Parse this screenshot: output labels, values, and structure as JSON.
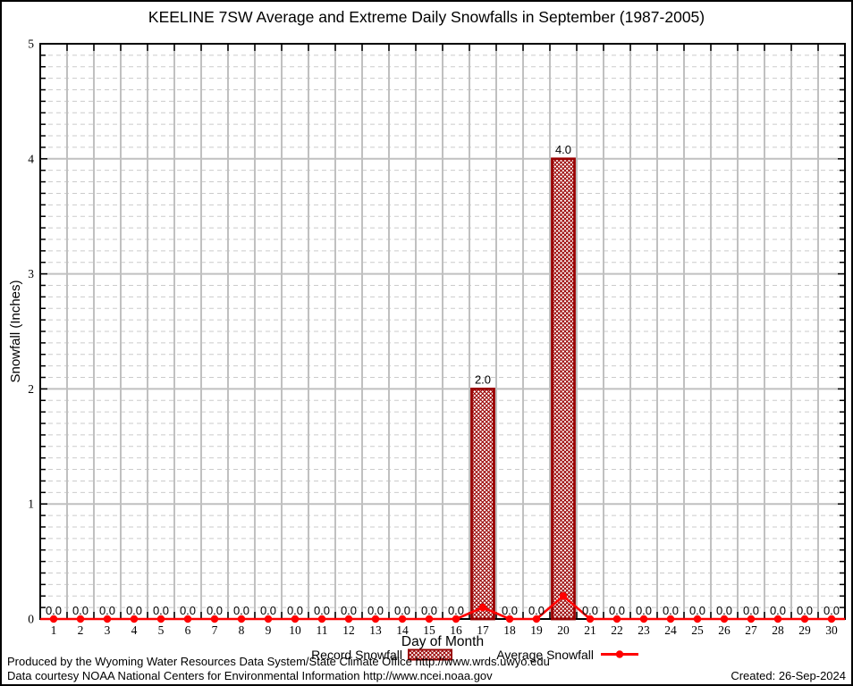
{
  "title": "KEELINE 7SW Average and Extreme Daily Snowfalls in September (1987-2005)",
  "y_axis": {
    "label": "Snowfall (Inches)",
    "ticks": [
      "0",
      "1",
      "2",
      "3",
      "4",
      "5"
    ]
  },
  "x_axis": {
    "label": "Day of Month"
  },
  "legend": {
    "record_label": "Record Snowfall",
    "average_label": "Average Snowfall"
  },
  "footer": {
    "line1": "Produced by the Wyoming Water Resources Data System/State Climate Office http://www.wrds.uwyo.edu",
    "line2": "Data courtesy NOAA National Centers for Environmental Information http://www.ncei.noaa.gov",
    "created": "Created: 26-Sep-2024"
  },
  "colors": {
    "bar_outline": "#990000",
    "bar_hatch": "#990000",
    "bar_fill": "#ffffff",
    "average_line": "#ff0000",
    "grid_major": "#c0c0c0",
    "grid_minor": "#cbcbcb",
    "frame": "#000000",
    "background": "#ffffff"
  },
  "chart_data": {
    "type": "bar",
    "title": "KEELINE 7SW Average and Extreme Daily Snowfalls in September (1987-2005)",
    "xlabel": "Day of Month",
    "ylabel": "Snowfall (Inches)",
    "ylim": [
      0,
      5
    ],
    "yticks": [
      0,
      1,
      2,
      3,
      4,
      5
    ],
    "minor_grid_step": 0.1,
    "grid": "major and minor horizontal, vertical day-boundary lines",
    "legend_position": "bottom",
    "categories": [
      1,
      2,
      3,
      4,
      5,
      6,
      7,
      8,
      9,
      10,
      11,
      12,
      13,
      14,
      15,
      16,
      17,
      18,
      19,
      20,
      21,
      22,
      23,
      24,
      25,
      26,
      27,
      28,
      29,
      30
    ],
    "series": [
      {
        "name": "Record Snowfall",
        "type": "bar",
        "values": [
          0,
          0,
          0,
          0,
          0,
          0,
          0,
          0,
          0,
          0,
          0,
          0,
          0,
          0,
          0,
          0,
          2.0,
          0,
          0,
          4.0,
          0,
          0,
          0,
          0,
          0,
          0,
          0,
          0,
          0,
          0
        ]
      },
      {
        "name": "Average Snowfall",
        "type": "line",
        "values": [
          0,
          0,
          0,
          0,
          0,
          0,
          0,
          0,
          0,
          0,
          0,
          0,
          0,
          0,
          0,
          0,
          0.1,
          0,
          0,
          0.2,
          0,
          0,
          0,
          0,
          0,
          0,
          0,
          0,
          0,
          0
        ]
      }
    ],
    "point_labels": [
      "0.0",
      "0.0",
      "0.0",
      "0.0",
      "0.0",
      "0.0",
      "0.0",
      "0.0",
      "0.0",
      "0.0",
      "0.0",
      "0.0",
      "0.0",
      "0.0",
      "0.0",
      "0.0",
      "2.0",
      "0.0",
      "0.0",
      "4.0",
      "0.0",
      "0.0",
      "0.0",
      "0.0",
      "0.0",
      "0.0",
      "0.0",
      "0.0",
      "0.0",
      "0.0"
    ]
  }
}
